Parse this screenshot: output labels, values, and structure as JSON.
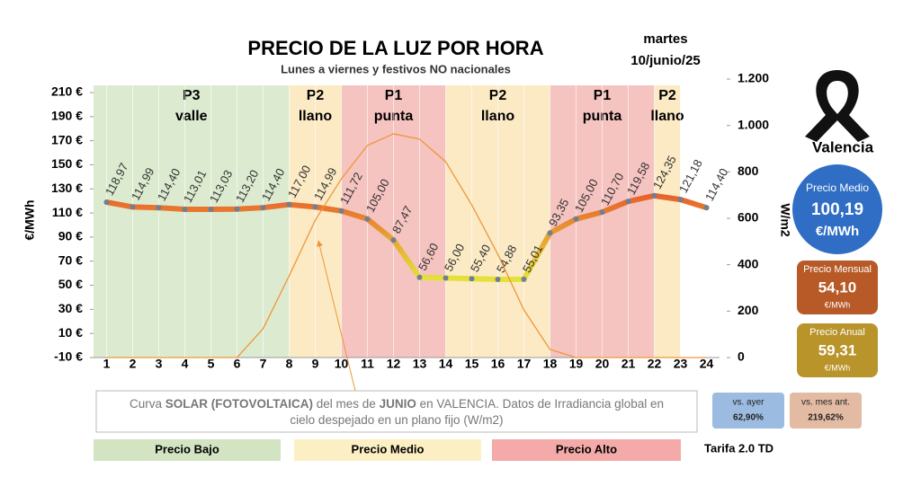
{
  "chart_data": {
    "type": "line",
    "title": "PRECIO DE LA LUZ POR HORA",
    "subtitle": "Lunes a viernes y festivos NO nacionales",
    "day": "martes",
    "date": "10/junio/25",
    "categories": [
      "1",
      "2",
      "3",
      "4",
      "5",
      "6",
      "7",
      "8",
      "9",
      "10",
      "11",
      "12",
      "13",
      "14",
      "15",
      "16",
      "17",
      "18",
      "19",
      "20",
      "21",
      "22",
      "23",
      "24"
    ],
    "series": [
      {
        "color": "#e8622c",
        "low_color": "#e4e23a",
        "marker_color": "#6f7f96",
        "values": [
          118.97,
          114.99,
          114.4,
          113.01,
          113.03,
          113.2,
          114.4,
          117.0,
          114.99,
          111.72,
          105.0,
          87.47,
          56.6,
          56.0,
          55.4,
          54.88,
          55.01,
          93.35,
          105.0,
          110.7,
          119.58,
          124.35,
          121.18,
          114.4
        ],
        "value_labels": [
          "118,97",
          "114,99",
          "114,40",
          "113,01",
          "113,03",
          "113,20",
          "114,40",
          "117,00",
          "114,99",
          "111,72",
          "105,00",
          "87,47",
          "56,60",
          "56,00",
          "55,40",
          "54,88",
          "55,01",
          "93,35",
          "105,00",
          "110,70",
          "119,58",
          "124,35",
          "121,18",
          "114,40"
        ]
      },
      {
        "color": "#f0963c",
        "axis": "y2",
        "values": [
          0,
          0,
          0,
          0,
          0,
          0,
          124,
          352,
          592,
          770,
          914,
          964,
          941,
          844,
          658,
          445,
          205,
          35,
          0,
          0,
          0,
          0,
          0,
          0
        ]
      }
    ],
    "ylabel": "€/MWh",
    "ylim": [
      -10,
      210
    ],
    "yticks": [
      {
        "value": -10,
        "label": "-10 €"
      },
      {
        "value": 10,
        "label": "10 €"
      },
      {
        "value": 30,
        "label": "30 €"
      },
      {
        "value": 50,
        "label": "50 €"
      },
      {
        "value": 70,
        "label": "70 €"
      },
      {
        "value": 90,
        "label": "90 €"
      },
      {
        "value": 110,
        "label": "110 €"
      },
      {
        "value": 130,
        "label": "130 €"
      },
      {
        "value": 150,
        "label": "150 €"
      },
      {
        "value": 170,
        "label": "170 €"
      },
      {
        "value": 190,
        "label": "190 €"
      },
      {
        "value": 210,
        "label": "210 €"
      }
    ],
    "y2label": "W/m2",
    "y2lim": [
      0,
      1200
    ],
    "y2ticks": [
      0,
      200,
      400,
      600,
      800,
      {
        "value": 1000,
        "label": "1.000"
      },
      {
        "value": 1200,
        "label": "1.200"
      }
    ],
    "periods": [
      {
        "name": "P3",
        "label": "valle",
        "from": 1,
        "to": 8,
        "color": "#dcebd0"
      },
      {
        "name": "P2",
        "label": "llano",
        "from": 8,
        "to": 10,
        "color": "#fbeac4"
      },
      {
        "name": "P1",
        "label": "punta",
        "from": 10,
        "to": 14,
        "color": "#f5c3c0"
      },
      {
        "name": "P2",
        "label": "llano",
        "from": 14,
        "to": 18,
        "color": "#fbeac4"
      },
      {
        "name": "P1",
        "label": "punta",
        "from": 18,
        "to": 22,
        "color": "#f5c3c0"
      },
      {
        "name": "P2",
        "label": "llano",
        "from": 22,
        "to": 23,
        "color": "#fbeac4"
      }
    ],
    "legend": [
      {
        "label": "Precio Bajo",
        "color": "#d3e4c3"
      },
      {
        "label": "Precio Medio",
        "color": "#fdefc4"
      },
      {
        "label": "Precio Alto",
        "color": "#f4aaa8"
      }
    ],
    "tariff": "Tarifa 2.0 TD",
    "note": [
      [
        {
          "text": "Curva ",
          "bold": false
        },
        {
          "text": "SOLAR (FOTOVOLTAICA)",
          "bold": true
        },
        {
          "text": " del mes de ",
          "bold": false
        },
        {
          "text": "JUNIO",
          "bold": true
        },
        {
          "text": " en VALENCIA. Datos de Irradiancia global en",
          "bold": false
        }
      ],
      [
        {
          "text": "cielo despejado en un plano fijo (W/m2)",
          "bold": false
        }
      ]
    ],
    "summary": {
      "city": "Valencia",
      "average": {
        "label": "Precio Medio",
        "value": "100,19",
        "unit": "€/MWh"
      },
      "monthly": {
        "label": "Precio Mensual",
        "value": "54,10",
        "unit": "€/MWh"
      },
      "yearly": {
        "label": "Precio Anual",
        "value": "59,31",
        "unit": "€/MWh"
      },
      "vs_yesterday": {
        "label": "vs. ayer",
        "value": "62,90%"
      },
      "vs_last_month": {
        "label": "vs. mes ant.",
        "value": "219,62%"
      }
    }
  }
}
